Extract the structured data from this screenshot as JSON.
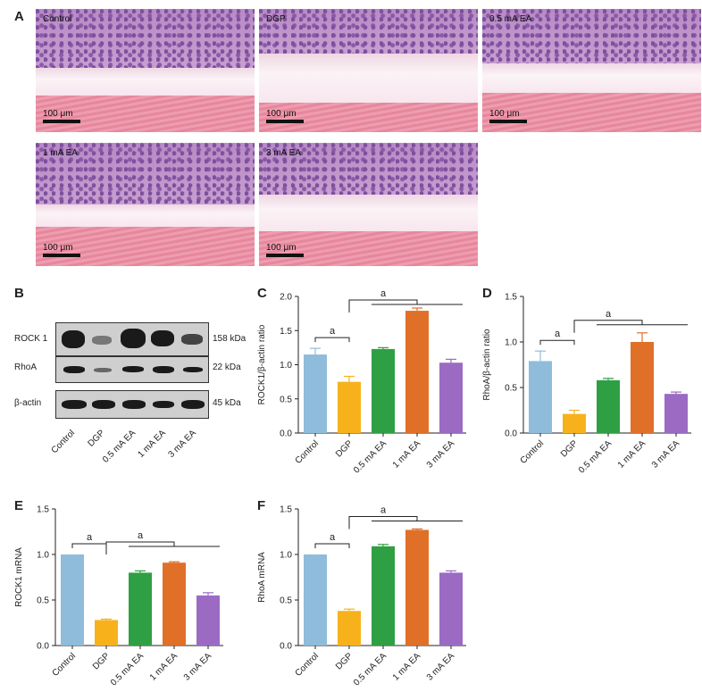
{
  "panel_letters": [
    "A",
    "B",
    "C",
    "D",
    "E",
    "F"
  ],
  "histology": [
    {
      "label": "Control",
      "scale": "100 μm"
    },
    {
      "label": "DGP",
      "scale": "100 μm"
    },
    {
      "label": "0.5 mA EA",
      "scale": "100 μm"
    },
    {
      "label": "1 mA EA",
      "scale": "100 μm"
    },
    {
      "label": "3 mA EA",
      "scale": "100 μm"
    }
  ],
  "blot": {
    "rows": [
      {
        "name": "ROCK 1",
        "size": "158 kDa"
      },
      {
        "name": "RhoA",
        "size": "22 kDa"
      },
      {
        "name": "β-actin",
        "size": "45 kDa"
      }
    ],
    "lanes": [
      "Control",
      "DGP",
      "0.5 mA EA",
      "1 mA EA",
      "3 mA EA"
    ]
  },
  "colors": {
    "Control": "#8fbcdb",
    "DGP": "#f7b21b",
    "0.5 mA EA": "#2ea043",
    "1 mA EA": "#e07028",
    "3 mA EA": "#9b6bc4",
    "error": "#333333"
  },
  "chart_data": [
    {
      "type": "bar",
      "categories": [
        "Control",
        "DGP",
        "0.5 mA EA",
        "1 mA EA",
        "3 mA EA"
      ],
      "values": [
        1.15,
        0.75,
        1.23,
        1.79,
        1.03
      ],
      "errors": [
        0.09,
        0.08,
        0.02,
        0.04,
        0.05
      ],
      "ylabel": "ROCK1/β-actin ratio",
      "ylim": [
        0,
        2.0
      ],
      "yticks": [
        "0.0",
        "0.5",
        "1.0",
        "1.5",
        "2.0"
      ],
      "significance": "a"
    },
    {
      "type": "bar",
      "categories": [
        "Control",
        "DGP",
        "0.5 mA EA",
        "1 mA EA",
        "3 mA EA"
      ],
      "values": [
        0.79,
        0.21,
        0.58,
        1.0,
        0.43
      ],
      "errors": [
        0.11,
        0.04,
        0.02,
        0.1,
        0.02
      ],
      "ylabel": "RhoA/β-actin ratio",
      "ylim": [
        0,
        1.5
      ],
      "yticks": [
        "0.0",
        "0.5",
        "1.0",
        "1.5"
      ],
      "significance": "a"
    },
    {
      "type": "bar",
      "categories": [
        "Control",
        "DGP",
        "0.5 mA EA",
        "1 mA EA",
        "3 mA EA"
      ],
      "values": [
        1.0,
        0.28,
        0.8,
        0.91,
        0.55
      ],
      "errors": [
        0.0,
        0.01,
        0.02,
        0.01,
        0.03
      ],
      "ylabel": "ROCK1 mRNA",
      "ylim": [
        0,
        1.5
      ],
      "yticks": [
        "0.0",
        "0.5",
        "1.0",
        "1.5"
      ],
      "significance": "a"
    },
    {
      "type": "bar",
      "categories": [
        "Control",
        "DGP",
        "0.5 mA EA",
        "1 mA EA",
        "3 mA EA"
      ],
      "values": [
        1.0,
        0.38,
        1.09,
        1.27,
        0.8
      ],
      "errors": [
        0.0,
        0.02,
        0.02,
        0.01,
        0.02
      ],
      "ylabel": "RhoA mRNA",
      "ylim": [
        0,
        1.5
      ],
      "yticks": [
        "0.0",
        "0.5",
        "1.0",
        "1.5"
      ],
      "significance": "a"
    }
  ]
}
